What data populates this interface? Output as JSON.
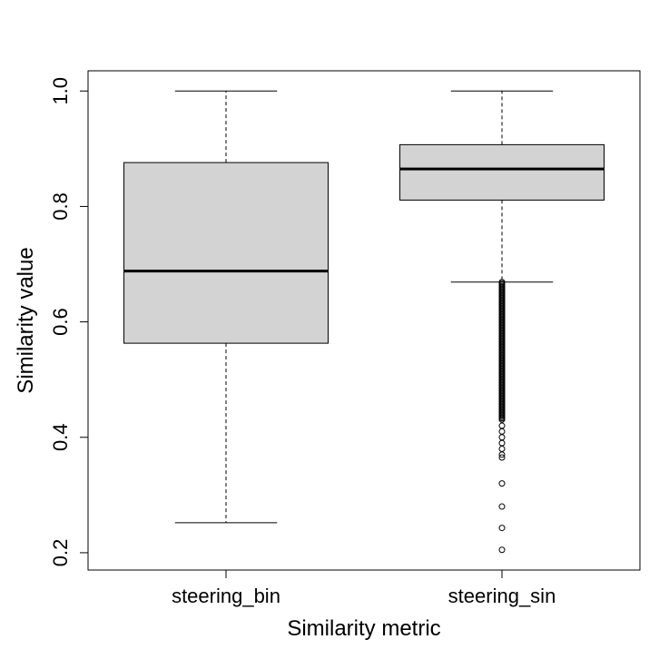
{
  "chart_data": {
    "type": "boxplot",
    "title": "",
    "xlabel": "Similarity metric",
    "ylabel": "Similarity value",
    "ylim": [
      0.17,
      1.035
    ],
    "yticks": [
      "0.2",
      "0.4",
      "0.6",
      "0.8",
      "1.0"
    ],
    "grid": false,
    "legend": "none",
    "box_fill": "#d3d3d3",
    "categories": [
      "steering_bin",
      "steering_sin"
    ],
    "boxes": [
      {
        "name": "steering_bin",
        "whisker_low": 0.252,
        "q1": 0.563,
        "median": 0.688,
        "q3": 0.876,
        "whisker_high": 1.0,
        "outliers": []
      },
      {
        "name": "steering_sin",
        "whisker_low": 0.669,
        "q1": 0.811,
        "median": 0.865,
        "q3": 0.907,
        "whisker_high": 1.0,
        "outlier_band": [
          0.43,
          0.669
        ],
        "outliers": [
          0.42,
          0.41,
          0.4,
          0.39,
          0.38,
          0.37,
          0.365,
          0.32,
          0.28,
          0.243,
          0.205
        ]
      }
    ]
  }
}
